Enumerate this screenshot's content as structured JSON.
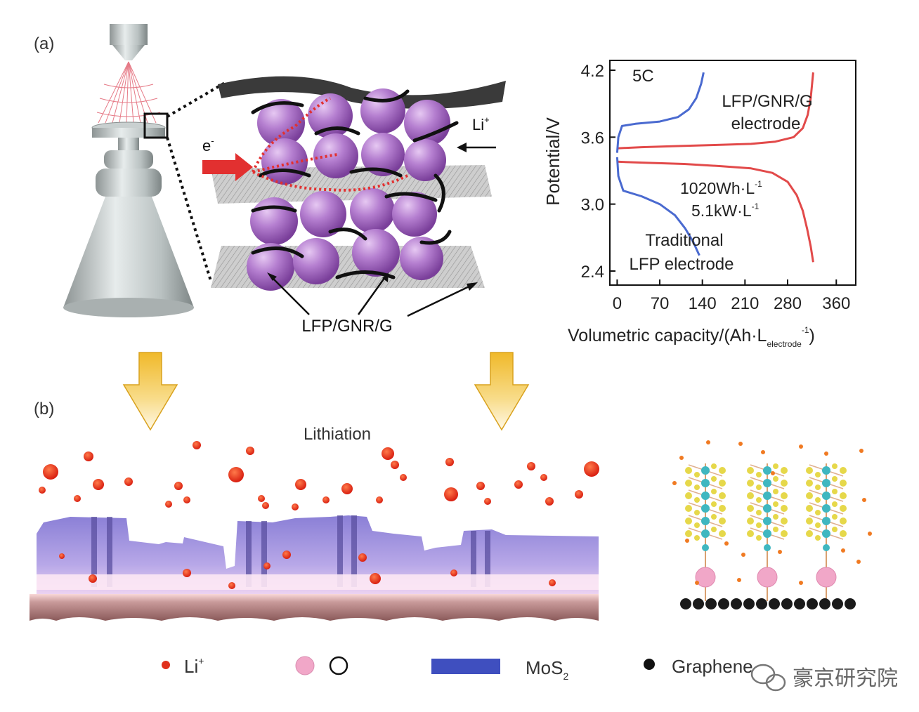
{
  "panel_labels": {
    "a": "(a)",
    "b": "(b)"
  },
  "labels": {
    "electron": "e",
    "electron_sup": "-",
    "li_ion": "Li",
    "li_sup": "+",
    "lfp_gnr_g": "LFP/GNR/G",
    "lithiation": "Lithiation"
  },
  "legend": {
    "li": "Li",
    "li_sup": "+",
    "mos2_main": "MoS",
    "mos2_sub": "2",
    "graphene": "Graphene"
  },
  "watermark": "豪京研究院",
  "colors": {
    "lfp_sphere": "#b57fd0",
    "red_curve": "#e24a4a",
    "blue_curve": "#4a6ad0",
    "li_dot": "#e0301c",
    "mos2_bar": "#3f4fbf",
    "arrow_yellow": "#f0b92a"
  },
  "chart_data": {
    "type": "line",
    "title": "",
    "xlabel": "Volumetric capacity/(Ah·L",
    "xlabel_sub": "electrode",
    "xlabel_sup": "-1",
    "xlabel_end": ")",
    "ylabel": "Potential/V",
    "xlim": [
      -12,
      392
    ],
    "ylim": [
      2.4,
      4.2
    ],
    "x_ticks": [
      0,
      70,
      140,
      210,
      280,
      360
    ],
    "y_ticks": [
      2.4,
      3.0,
      3.6,
      4.2
    ],
    "grid": false,
    "annotations": {
      "rate": "5C",
      "lfp_new_1": "LFP/GNR/G",
      "lfp_new_2": "electrode",
      "energy": "1020Wh·L",
      "power": "5.1kW·L",
      "unit_sup": "-1",
      "trad_1": "Traditional",
      "trad_2": "LFP electrode"
    },
    "series": [
      {
        "label": "charge_red",
        "color": "#e24a4a",
        "points": [
          [
            0,
            3.5
          ],
          [
            40,
            3.51
          ],
          [
            100,
            3.52
          ],
          [
            160,
            3.53
          ],
          [
            220,
            3.54
          ],
          [
            260,
            3.56
          ],
          [
            290,
            3.6
          ],
          [
            305,
            3.68
          ],
          [
            313,
            3.8
          ],
          [
            318,
            3.95
          ],
          [
            322,
            4.18
          ]
        ]
      },
      {
        "label": "discharge_red",
        "color": "#e24a4a",
        "points": [
          [
            0,
            3.38
          ],
          [
            50,
            3.37
          ],
          [
            110,
            3.36
          ],
          [
            170,
            3.34
          ],
          [
            220,
            3.32
          ],
          [
            255,
            3.28
          ],
          [
            280,
            3.2
          ],
          [
            295,
            3.08
          ],
          [
            305,
            2.94
          ],
          [
            312,
            2.78
          ],
          [
            318,
            2.62
          ],
          [
            322,
            2.48
          ]
        ]
      },
      {
        "label": "charge_blue",
        "color": "#4a6ad0",
        "points": [
          [
            0,
            3.46
          ],
          [
            2,
            3.6
          ],
          [
            8,
            3.7
          ],
          [
            30,
            3.72
          ],
          [
            70,
            3.74
          ],
          [
            100,
            3.78
          ],
          [
            118,
            3.85
          ],
          [
            130,
            3.95
          ],
          [
            138,
            4.08
          ],
          [
            142,
            4.18
          ]
        ]
      },
      {
        "label": "discharge_blue",
        "color": "#4a6ad0",
        "points": [
          [
            0,
            3.42
          ],
          [
            2,
            3.25
          ],
          [
            10,
            3.12
          ],
          [
            40,
            3.07
          ],
          [
            70,
            3.0
          ],
          [
            95,
            2.9
          ],
          [
            112,
            2.78
          ],
          [
            125,
            2.66
          ],
          [
            135,
            2.54
          ]
        ]
      }
    ]
  }
}
